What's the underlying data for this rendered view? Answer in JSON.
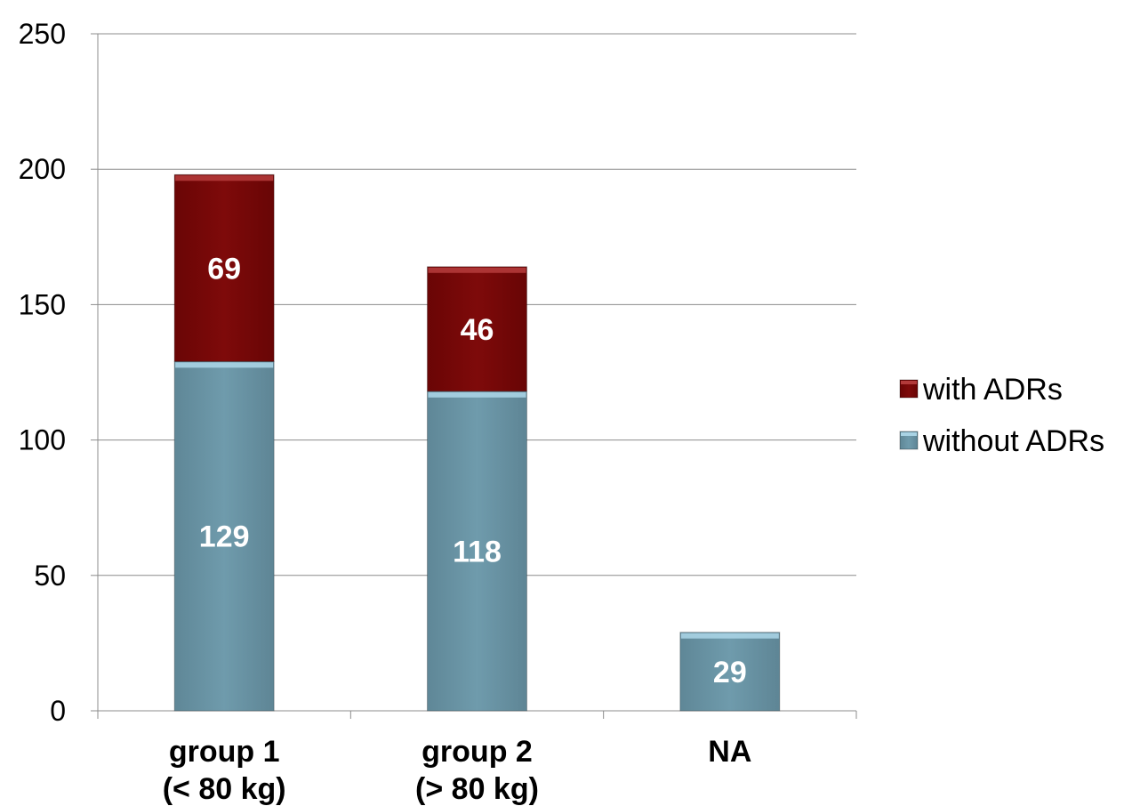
{
  "chart_data": {
    "type": "bar",
    "stacked": true,
    "categories": [
      [
        "group 1",
        "(< 80 kg)"
      ],
      [
        "group 2",
        "(> 80 kg)"
      ],
      [
        "NA"
      ]
    ],
    "series": [
      {
        "name": "without ADRs",
        "values": [
          129,
          118,
          29
        ],
        "color": "#6c97a8",
        "top_color": "#a9d3e4"
      },
      {
        "name": "with ADRs",
        "values": [
          69,
          46,
          null
        ],
        "color": "#7a0808",
        "top_color": "#b23a3a"
      }
    ],
    "ylim": [
      0,
      250
    ],
    "yticks": [
      0,
      50,
      100,
      150,
      200,
      250
    ],
    "grid": true,
    "legend_position": "right",
    "legend_order": [
      "with ADRs",
      "without ADRs"
    ],
    "title": "",
    "xlabel": "",
    "ylabel": ""
  }
}
